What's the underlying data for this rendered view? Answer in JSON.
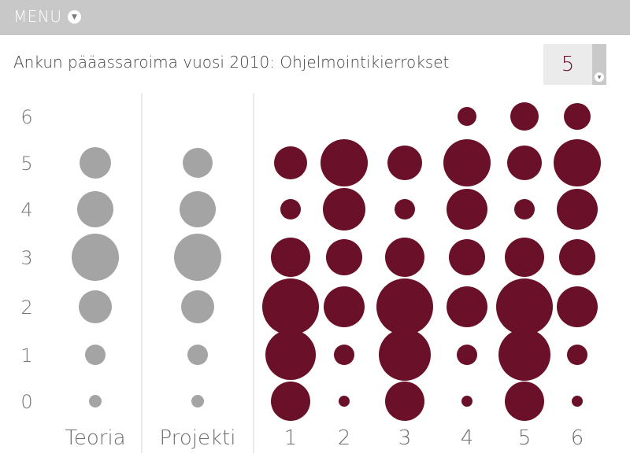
{
  "menu": {
    "label": "MENU",
    "arrow_icon": "chevron-down-icon"
  },
  "title": "Ankun pääassaroima vuosi 2010: Ohjelmointikierrokset",
  "selector": {
    "value": "5"
  },
  "colors": {
    "gray": "#a4a4a4",
    "maroon": "#6a1028",
    "divider": "#d6d6d6"
  },
  "chart_data": {
    "type": "scatter",
    "encoding": "bubble: circle area proportional to count at each grade",
    "y_ticks": [
      "0",
      "1",
      "2",
      "3",
      "4",
      "5",
      "6"
    ],
    "ylim": [
      0,
      6
    ],
    "grid": false,
    "categories": [
      "Teoria",
      "Projekti",
      "1",
      "2",
      "3",
      "4",
      "5",
      "6"
    ],
    "groups": [
      {
        "label": "Teoria",
        "color": "gray",
        "sizes": [
          {
            "y": 0,
            "r": 8
          },
          {
            "y": 1,
            "r": 13
          },
          {
            "y": 2,
            "r": 21
          },
          {
            "y": 3,
            "r": 30
          },
          {
            "y": 4,
            "r": 23
          },
          {
            "y": 5,
            "r": 20
          }
        ]
      },
      {
        "label": "Projekti",
        "color": "gray",
        "sizes": [
          {
            "y": 0,
            "r": 8
          },
          {
            "y": 1,
            "r": 13
          },
          {
            "y": 2,
            "r": 21
          },
          {
            "y": 3,
            "r": 30
          },
          {
            "y": 4,
            "r": 23
          },
          {
            "y": 5,
            "r": 19
          }
        ]
      },
      {
        "label": "1",
        "color": "maroon",
        "sizes": [
          {
            "y": 0,
            "r": 25
          },
          {
            "y": 1,
            "r": 32
          },
          {
            "y": 2,
            "r": 36
          },
          {
            "y": 3,
            "r": 25
          },
          {
            "y": 4,
            "r": 13
          },
          {
            "y": 5,
            "r": 21
          }
        ]
      },
      {
        "label": "2",
        "color": "maroon",
        "sizes": [
          {
            "y": 0,
            "r": 7
          },
          {
            "y": 1,
            "r": 13
          },
          {
            "y": 2,
            "r": 26
          },
          {
            "y": 3,
            "r": 23
          },
          {
            "y": 4,
            "r": 27
          },
          {
            "y": 5,
            "r": 30
          }
        ]
      },
      {
        "label": "3",
        "color": "maroon",
        "sizes": [
          {
            "y": 0,
            "r": 25
          },
          {
            "y": 1,
            "r": 33
          },
          {
            "y": 2,
            "r": 36
          },
          {
            "y": 3,
            "r": 25
          },
          {
            "y": 4,
            "r": 13
          },
          {
            "y": 5,
            "r": 22
          }
        ]
      },
      {
        "label": "4",
        "color": "maroon",
        "sizes": [
          {
            "y": 0,
            "r": 7
          },
          {
            "y": 1,
            "r": 13
          },
          {
            "y": 2,
            "r": 26
          },
          {
            "y": 3,
            "r": 23
          },
          {
            "y": 4,
            "r": 26
          },
          {
            "y": 5,
            "r": 30
          },
          {
            "y": 6,
            "r": 12
          }
        ]
      },
      {
        "label": "5",
        "color": "maroon",
        "sizes": [
          {
            "y": 0,
            "r": 25
          },
          {
            "y": 1,
            "r": 33
          },
          {
            "y": 2,
            "r": 36
          },
          {
            "y": 3,
            "r": 25
          },
          {
            "y": 4,
            "r": 13
          },
          {
            "y": 5,
            "r": 22
          },
          {
            "y": 6,
            "r": 18
          }
        ]
      },
      {
        "label": "6",
        "color": "maroon",
        "sizes": [
          {
            "y": 0,
            "r": 7
          },
          {
            "y": 1,
            "r": 13
          },
          {
            "y": 2,
            "r": 26
          },
          {
            "y": 3,
            "r": 23
          },
          {
            "y": 4,
            "r": 26
          },
          {
            "y": 5,
            "r": 30
          },
          {
            "y": 6,
            "r": 17
          }
        ]
      }
    ]
  }
}
